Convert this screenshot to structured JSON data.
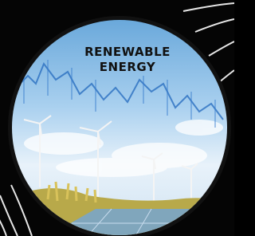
{
  "title": [
    "RENEWABLE",
    "ENERGY"
  ]
}
